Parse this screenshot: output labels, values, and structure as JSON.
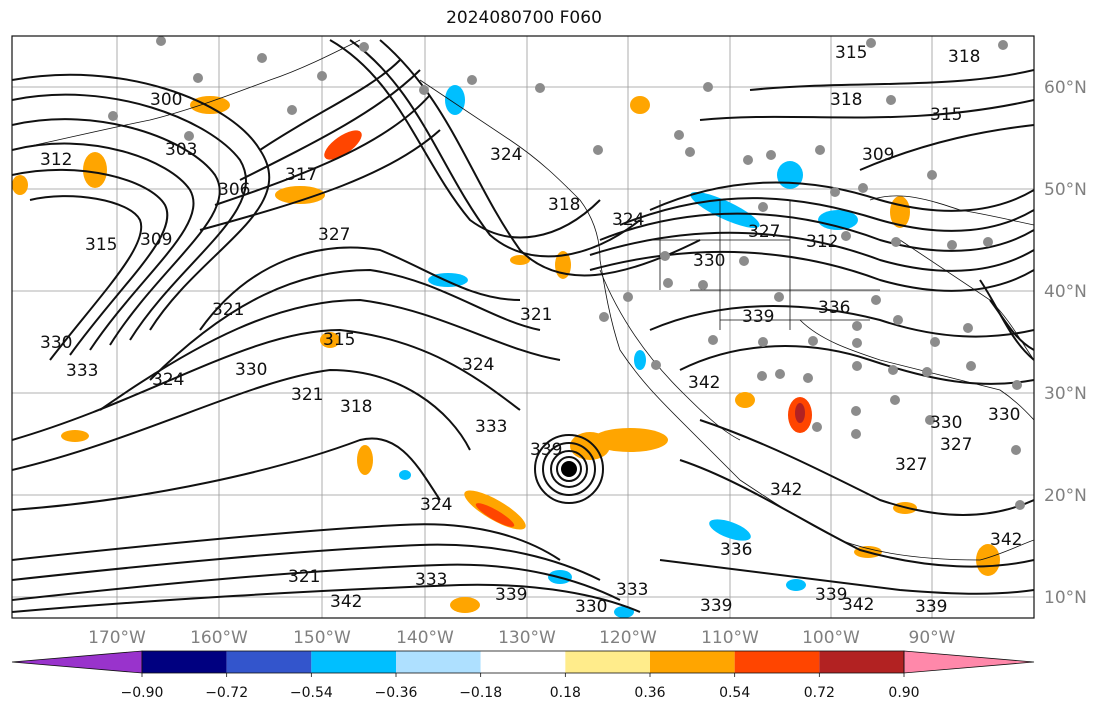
{
  "title": "2024080700 F060",
  "longitude_labels": [
    "170°W",
    "160°W",
    "150°W",
    "140°W",
    "130°W",
    "120°W",
    "110°W",
    "100°W",
    "90°W"
  ],
  "latitude_labels": [
    "60°N",
    "50°N",
    "40°N",
    "30°N",
    "20°N",
    "10°N"
  ],
  "colorbar": {
    "colors": [
      "#9933cc",
      "#000080",
      "#3355cc",
      "#00bfff",
      "#aee0ff",
      "#ffffff",
      "#ffec8b",
      "#ffa500",
      "#ff4500",
      "#b22222",
      "#ff88aa"
    ],
    "tick_labels": [
      "−0.90",
      "−0.72",
      "−0.54",
      "−0.36",
      "−0.18",
      "0.18",
      "0.36",
      "0.54",
      "0.72",
      "0.90"
    ]
  },
  "contour_labels": [
    "300",
    "303",
    "306",
    "309",
    "312",
    "315",
    "317",
    "318",
    "321",
    "324",
    "327",
    "330",
    "333",
    "336",
    "339",
    "342"
  ],
  "storm_marker": "hurricane-center"
}
